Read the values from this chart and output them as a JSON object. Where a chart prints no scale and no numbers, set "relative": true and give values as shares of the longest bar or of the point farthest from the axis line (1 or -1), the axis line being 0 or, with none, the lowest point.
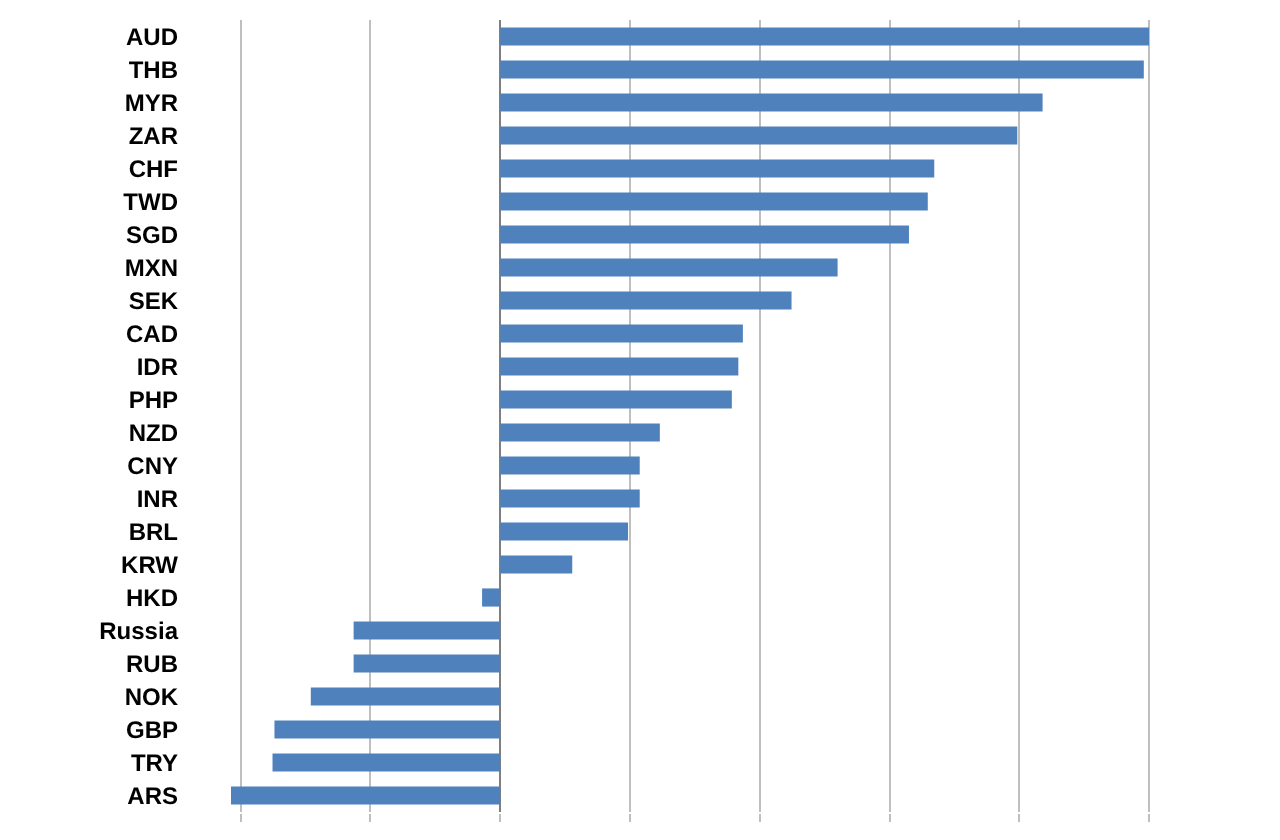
{
  "chart_data": {
    "type": "bar",
    "orientation": "horizontal",
    "relative": true,
    "grid": "x",
    "legend": false,
    "categories": [
      "AUD",
      "THB",
      "MYR",
      "ZAR",
      "CHF",
      "TWD",
      "SGD",
      "MXN",
      "SEK",
      "CAD",
      "IDR",
      "PHP",
      "NZD",
      "CNY",
      "INR",
      "BRL",
      "KRW",
      "HKD",
      "Russia",
      "RUB",
      "NOK",
      "GBP",
      "TRY",
      "ARS"
    ],
    "series": [
      {
        "color": "#4f81bd",
        "values": [
          1,
          0.992,
          0.836,
          0.797,
          0.669,
          0.659,
          0.63,
          0.52,
          0.449,
          0.374,
          0.367,
          0.357,
          0.246,
          0.215,
          0.215,
          0.197,
          0.111,
          -0.028,
          -0.226,
          -0.226,
          -0.292,
          -0.348,
          -0.351,
          -0.415
        ]
      }
    ]
  }
}
